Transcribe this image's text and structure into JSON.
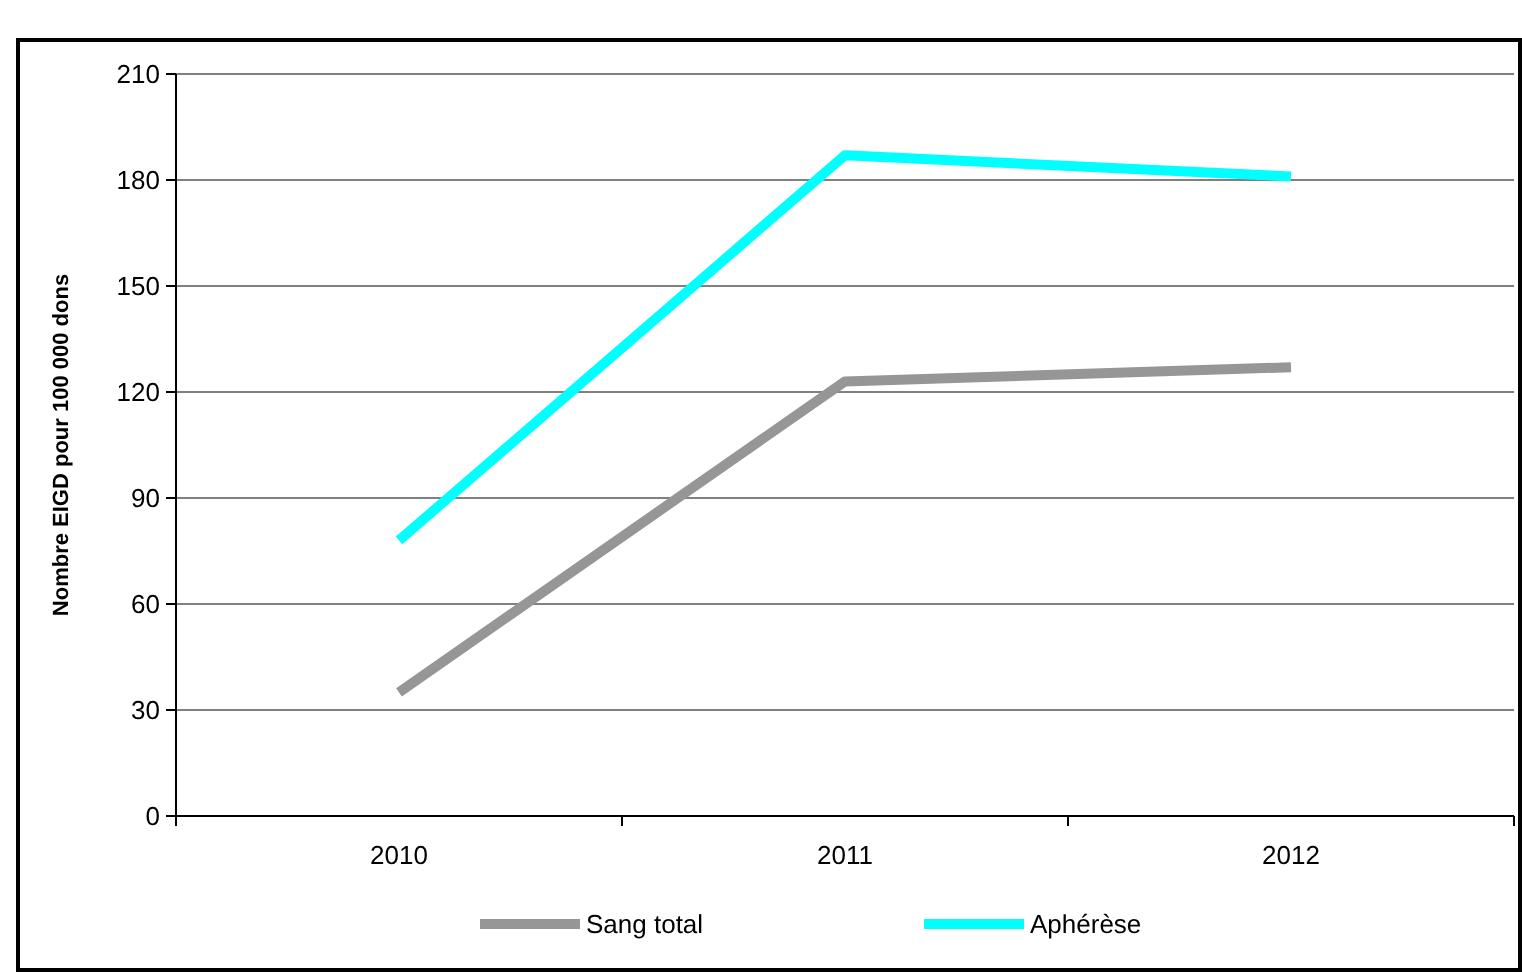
{
  "chart_data": {
    "type": "line",
    "ylabel": "Nombre EIGD pour 100 000 dons",
    "categories": [
      "2010",
      "2011",
      "2012"
    ],
    "series": [
      {
        "name": "Sang total",
        "color": "#969696",
        "values": [
          35,
          123,
          127
        ]
      },
      {
        "name": "Aphérèse",
        "color": "#00ffff",
        "values": [
          78,
          187,
          181
        ]
      }
    ],
    "ylim": [
      0,
      210
    ],
    "yticks": [
      0,
      30,
      60,
      90,
      120,
      150,
      180,
      210
    ],
    "grid": "y",
    "legend": "bottom",
    "marker": "none",
    "line_style": "solid"
  }
}
